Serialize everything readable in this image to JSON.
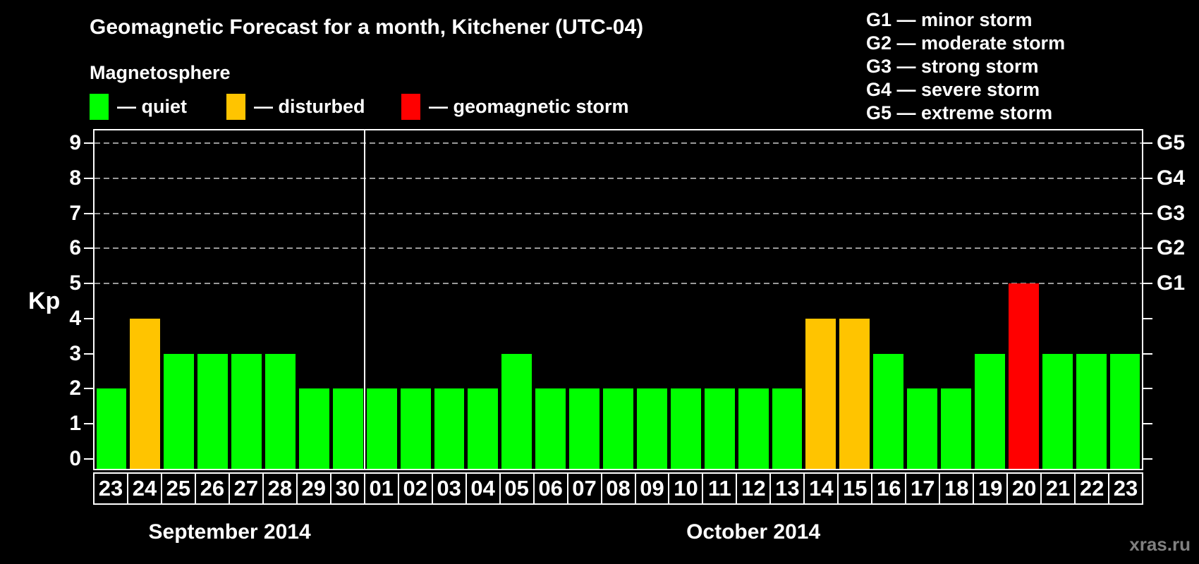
{
  "header": {
    "title": "Geomagnetic Forecast for a month, Kitchener (UTC-04)",
    "legend_heading": "Magnetosphere",
    "legend_items": [
      {
        "name": "quiet",
        "label": "— quiet",
        "color": "#00ff00"
      },
      {
        "name": "disturbed",
        "label": "— disturbed",
        "color": "#ffc400"
      },
      {
        "name": "storm",
        "label": "— geomagnetic storm",
        "color": "#ff0000"
      }
    ],
    "storm_scale_legend": [
      "G1 — minor storm",
      "G2 — moderate storm",
      "G3 — strong storm",
      "G4 — severe storm",
      "G5 — extreme storm"
    ]
  },
  "watermark": "xras.ru",
  "chart_data": {
    "type": "bar",
    "title": "Geomagnetic Forecast for a month, Kitchener (UTC-04)",
    "ylabel": "Kp",
    "ylim": [
      0,
      9.6
    ],
    "y_ticks": [
      0,
      1,
      2,
      3,
      4,
      5,
      6,
      7,
      8,
      9
    ],
    "gridlines_at_kp": [
      5,
      6,
      7,
      8,
      9
    ],
    "grid": "dashed horizontal lines at storm levels only",
    "legend_position": "top",
    "right_axis": [
      {
        "kp": 5,
        "label": "G1"
      },
      {
        "kp": 6,
        "label": "G2"
      },
      {
        "kp": 7,
        "label": "G3"
      },
      {
        "kp": 8,
        "label": "G4"
      },
      {
        "kp": 9,
        "label": "G5"
      }
    ],
    "status_colors": {
      "quiet": "#00ff00",
      "disturbed": "#ffc400",
      "storm": "#ff0000"
    },
    "months": [
      {
        "label": "September 2014",
        "short": "sep",
        "start_index": 0,
        "days_count": 8
      },
      {
        "label": "October 2014",
        "short": "oct",
        "start_index": 8,
        "days_count": 23
      }
    ],
    "bars": [
      {
        "day": "23",
        "kp": 2,
        "status": "quiet"
      },
      {
        "day": "24",
        "kp": 4,
        "status": "disturbed"
      },
      {
        "day": "25",
        "kp": 3,
        "status": "quiet"
      },
      {
        "day": "26",
        "kp": 3,
        "status": "quiet"
      },
      {
        "day": "27",
        "kp": 3,
        "status": "quiet"
      },
      {
        "day": "28",
        "kp": 3,
        "status": "quiet"
      },
      {
        "day": "29",
        "kp": 2,
        "status": "quiet"
      },
      {
        "day": "30",
        "kp": 2,
        "status": "quiet"
      },
      {
        "day": "01",
        "kp": 2,
        "status": "quiet"
      },
      {
        "day": "02",
        "kp": 2,
        "status": "quiet"
      },
      {
        "day": "03",
        "kp": 2,
        "status": "quiet"
      },
      {
        "day": "04",
        "kp": 2,
        "status": "quiet"
      },
      {
        "day": "05",
        "kp": 3,
        "status": "quiet"
      },
      {
        "day": "06",
        "kp": 2,
        "status": "quiet"
      },
      {
        "day": "07",
        "kp": 2,
        "status": "quiet"
      },
      {
        "day": "08",
        "kp": 2,
        "status": "quiet"
      },
      {
        "day": "09",
        "kp": 2,
        "status": "quiet"
      },
      {
        "day": "10",
        "kp": 2,
        "status": "quiet"
      },
      {
        "day": "11",
        "kp": 2,
        "status": "quiet"
      },
      {
        "day": "12",
        "kp": 2,
        "status": "quiet"
      },
      {
        "day": "13",
        "kp": 2,
        "status": "quiet"
      },
      {
        "day": "14",
        "kp": 4,
        "status": "disturbed"
      },
      {
        "day": "15",
        "kp": 4,
        "status": "disturbed"
      },
      {
        "day": "16",
        "kp": 3,
        "status": "quiet"
      },
      {
        "day": "17",
        "kp": 2,
        "status": "quiet"
      },
      {
        "day": "18",
        "kp": 2,
        "status": "quiet"
      },
      {
        "day": "19",
        "kp": 3,
        "status": "quiet"
      },
      {
        "day": "20",
        "kp": 5,
        "status": "storm"
      },
      {
        "day": "21",
        "kp": 3,
        "status": "quiet"
      },
      {
        "day": "22",
        "kp": 3,
        "status": "quiet"
      },
      {
        "day": "23",
        "kp": 3,
        "status": "quiet"
      }
    ]
  }
}
